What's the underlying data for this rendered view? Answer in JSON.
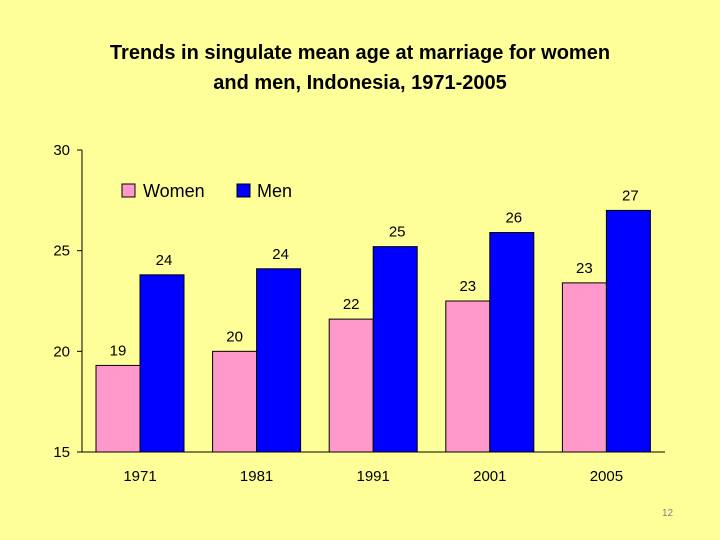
{
  "title_line1": "Trends in singulate mean age at marriage for women",
  "title_line2": "and men, Indonesia, 1971-2005",
  "slide_number": "12",
  "chart_data": {
    "type": "bar",
    "categories": [
      "1971",
      "1981",
      "1991",
      "2001",
      "2005"
    ],
    "series": [
      {
        "name": "Women",
        "color": "#FF99CC",
        "values": [
          19.3,
          20.0,
          21.6,
          22.5,
          23.4
        ],
        "labels": [
          "19",
          "20",
          "22",
          "23",
          "23"
        ]
      },
      {
        "name": "Men",
        "color": "#0000FF",
        "values": [
          23.8,
          24.1,
          25.2,
          25.9,
          27.0
        ],
        "labels": [
          "24",
          "24",
          "25",
          "26",
          "27"
        ]
      }
    ],
    "ylim": [
      15,
      30
    ],
    "yticks": [
      15,
      20,
      25,
      30
    ],
    "grid": false,
    "legend": "top-left"
  }
}
